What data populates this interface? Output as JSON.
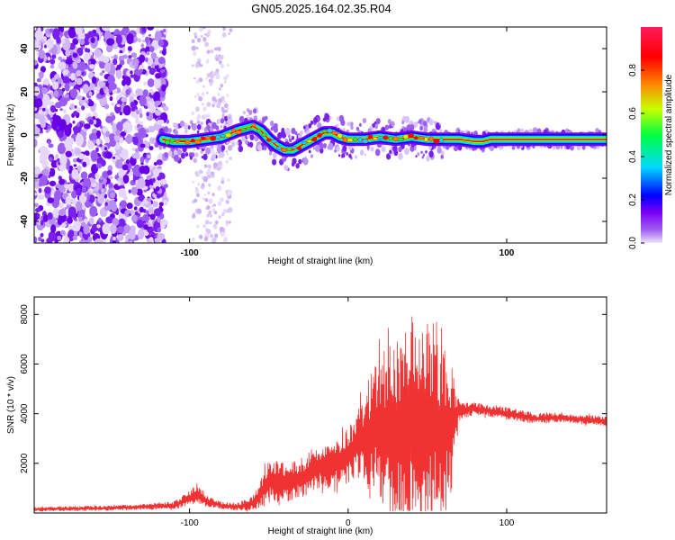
{
  "title": "GN05.2025.164.02.35.R04",
  "chart_data": [
    {
      "type": "heatmap",
      "xlabel": "Height of straight line (km)",
      "ylabel": "Frequency (Hz)",
      "xlim": [
        -198,
        163
      ],
      "ylim": [
        -50,
        50
      ],
      "xticks": [
        -100,
        100
      ],
      "yticks": [
        40,
        20,
        0,
        -20,
        -40
      ],
      "colorbar": {
        "label": "Normalized spectral amplitude",
        "range": [
          0,
          1
        ],
        "ticks": [
          0.0,
          0.2,
          0.4,
          0.6,
          0.8
        ],
        "colors": [
          "#f0e4fa",
          "#7b00f5",
          "#0000ff",
          "#00d8ff",
          "#00ff40",
          "#c8ff00",
          "#ff8000",
          "#ff0000",
          "#ff1a5a"
        ]
      },
      "ridge": {
        "x": [
          -117,
          -110,
          -100,
          -90,
          -80,
          -70,
          -60,
          -55,
          -50,
          -45,
          -40,
          -35,
          -30,
          -25,
          -20,
          -15,
          -10,
          -5,
          0,
          10,
          20,
          30,
          40,
          50,
          60,
          70,
          80,
          85,
          90,
          100,
          110,
          120,
          130,
          140,
          150,
          163
        ],
        "y": [
          -2,
          -3,
          -3,
          -2,
          -1,
          2,
          4,
          2,
          -2,
          -5,
          -7,
          -7,
          -5,
          -3,
          -1,
          1,
          1,
          -1,
          -2,
          -2,
          -1,
          -2,
          -1,
          -2,
          -2,
          -2,
          -3,
          -3,
          -2,
          -2,
          -2,
          -2,
          -2,
          -2,
          -2,
          -2
        ]
      }
    },
    {
      "type": "line",
      "xlabel": "Height of straight line (km)",
      "ylabel": "SNR (10 * v/v)",
      "xlim": [
        -198,
        163
      ],
      "ylim": [
        0,
        8700
      ],
      "xticks": [
        -100,
        0,
        100
      ],
      "yticks": [
        2000,
        4000,
        6000,
        8000
      ],
      "color": "#f03232",
      "envelope": {
        "x": [
          -198,
          -150,
          -110,
          -100,
          -95,
          -90,
          -80,
          -70,
          -60,
          -55,
          -50,
          -40,
          -30,
          -20,
          -10,
          0,
          5,
          10,
          15,
          20,
          25,
          30,
          35,
          40,
          45,
          50,
          55,
          60,
          65,
          70,
          80,
          90,
          100,
          110,
          120,
          130,
          140,
          150,
          163
        ],
        "mean": [
          150,
          200,
          300,
          600,
          800,
          500,
          300,
          250,
          400,
          800,
          1300,
          1200,
          1400,
          1800,
          2000,
          2300,
          2700,
          3100,
          3300,
          3500,
          3400,
          3200,
          3300,
          3500,
          3400,
          3300,
          3400,
          3300,
          3500,
          4100,
          4200,
          4100,
          4000,
          3900,
          3800,
          3850,
          3800,
          3750,
          3700
        ],
        "amp": [
          100,
          100,
          150,
          300,
          400,
          250,
          150,
          150,
          300,
          700,
          900,
          800,
          800,
          900,
          1000,
          1100,
          1300,
          1800,
          2400,
          3000,
          3300,
          3600,
          4200,
          4900,
          4700,
          4100,
          3600,
          3300,
          2800,
          400,
          250,
          250,
          250,
          250,
          200,
          200,
          200,
          200,
          200
        ]
      }
    }
  ]
}
